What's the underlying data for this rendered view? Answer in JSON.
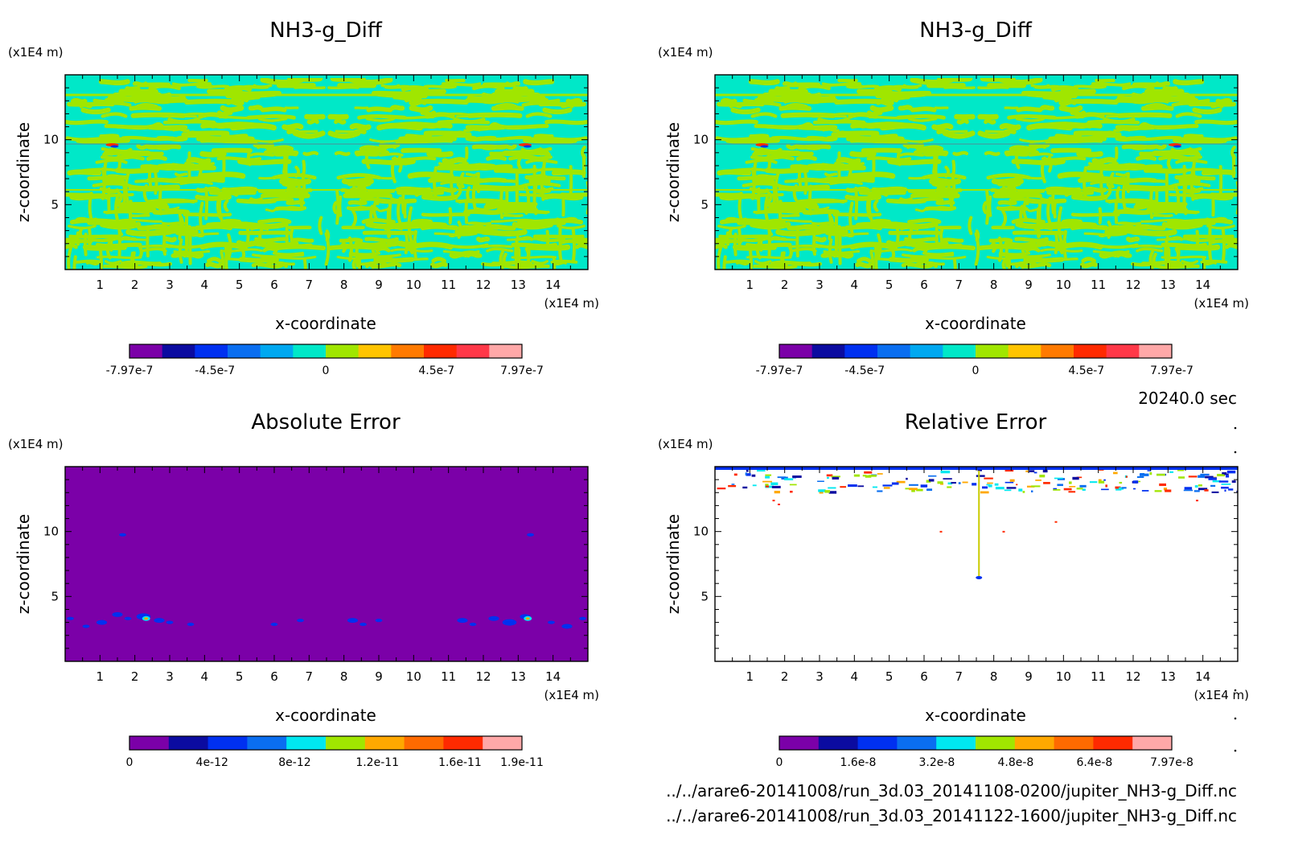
{
  "figure": {
    "time_label": "20240.0 sec",
    "files": [
      "../../arare6-20141008/run_3d.03_20141108-0200/jupiter_NH3-g_Diff.nc",
      "../../arare6-20141008/run_3d.03_20141122-1600/jupiter_NH3-g_Diff.nc"
    ]
  },
  "chart_data": [
    {
      "type": "heatmap",
      "title": "NH3-g_Diff",
      "xlabel": "x-coordinate",
      "ylabel": "z-coordinate",
      "x_unit": "(x1E4 m)",
      "y_unit": "(x1E4 m)",
      "xlim": [
        0,
        15
      ],
      "ylim": [
        0,
        15
      ],
      "x_ticks": [
        "1",
        "2",
        "3",
        "4",
        "5",
        "6",
        "7",
        "8",
        "9",
        "10",
        "11",
        "12",
        "13",
        "14"
      ],
      "y_ticks": [
        "5",
        "10"
      ],
      "pattern": "diff",
      "colorbar": {
        "colors": [
          "#7b00a8",
          "#0b0ba0",
          "#0030f0",
          "#0a6ef0",
          "#00a8f0",
          "#00e8c8",
          "#a0e600",
          "#ffc400",
          "#ff7a00",
          "#ff2a00",
          "#ff3848",
          "#ffa8a8"
        ],
        "tick_labels": [
          "-7.97e-7",
          "-4.5e-7",
          "0",
          "4.5e-7",
          "7.97e-7"
        ],
        "tick_values": [
          -7.97e-07,
          -4.5e-07,
          0,
          4.5e-07,
          7.97e-07
        ],
        "range": [
          -7.97e-07,
          7.97e-07
        ]
      }
    },
    {
      "type": "heatmap",
      "title": "NH3-g_Diff",
      "xlabel": "x-coordinate",
      "ylabel": "z-coordinate",
      "x_unit": "(x1E4 m)",
      "y_unit": "(x1E4 m)",
      "xlim": [
        0,
        15
      ],
      "ylim": [
        0,
        15
      ],
      "x_ticks": [
        "1",
        "2",
        "3",
        "4",
        "5",
        "6",
        "7",
        "8",
        "9",
        "10",
        "11",
        "12",
        "13",
        "14"
      ],
      "y_ticks": [
        "5",
        "10"
      ],
      "pattern": "diff",
      "colorbar": {
        "colors": [
          "#7b00a8",
          "#0b0ba0",
          "#0030f0",
          "#0a6ef0",
          "#00a8f0",
          "#00e8c8",
          "#a0e600",
          "#ffc400",
          "#ff7a00",
          "#ff2a00",
          "#ff3848",
          "#ffa8a8"
        ],
        "tick_labels": [
          "-7.97e-7",
          "-4.5e-7",
          "0",
          "4.5e-7",
          "7.97e-7"
        ],
        "tick_values": [
          -7.97e-07,
          -4.5e-07,
          0,
          4.5e-07,
          7.97e-07
        ],
        "range": [
          -7.97e-07,
          7.97e-07
        ]
      }
    },
    {
      "type": "heatmap",
      "title": "Absolute Error",
      "xlabel": "x-coordinate",
      "ylabel": "z-coordinate",
      "x_unit": "(x1E4 m)",
      "y_unit": "(x1E4 m)",
      "xlim": [
        0,
        15
      ],
      "ylim": [
        0,
        15
      ],
      "x_ticks": [
        "1",
        "2",
        "3",
        "4",
        "5",
        "6",
        "7",
        "8",
        "9",
        "10",
        "11",
        "12",
        "13",
        "14"
      ],
      "y_ticks": [
        "5",
        "10"
      ],
      "pattern": "abs",
      "colorbar": {
        "colors": [
          "#7b00a8",
          "#0b0ba0",
          "#0030f0",
          "#0a6ef0",
          "#00e8f0",
          "#a0e600",
          "#ffa800",
          "#ff6a00",
          "#ff2a00",
          "#ffa8a8"
        ],
        "tick_labels": [
          "0",
          "4e-12",
          "8e-12",
          "1.2e-11",
          "1.6e-11",
          "1.9e-11"
        ],
        "tick_values": [
          0,
          4e-12,
          8e-12,
          1.2e-11,
          1.6e-11,
          1.9e-11
        ],
        "range": [
          0,
          1.9e-11
        ]
      }
    },
    {
      "type": "heatmap",
      "title": "Relative Error",
      "xlabel": "x-coordinate",
      "ylabel": "z-coordinate",
      "x_unit": "(x1E4 m)",
      "y_unit": "(x1E4 m)",
      "xlim": [
        0,
        15
      ],
      "ylim": [
        0,
        15
      ],
      "x_ticks": [
        "1",
        "2",
        "3",
        "4",
        "5",
        "6",
        "7",
        "8",
        "9",
        "10",
        "11",
        "12",
        "13",
        "14"
      ],
      "y_ticks": [
        "5",
        "10"
      ],
      "pattern": "rel",
      "colorbar": {
        "colors": [
          "#7b00a8",
          "#0b0ba0",
          "#0030f0",
          "#0a6ef0",
          "#00e8f0",
          "#a0e600",
          "#ffa800",
          "#ff6a00",
          "#ff2a00",
          "#ffa8a8"
        ],
        "tick_labels": [
          "0",
          "1.6e-8",
          "3.2e-8",
          "4.8e-8",
          "6.4e-8",
          "7.97e-8"
        ],
        "tick_values": [
          0,
          1.6e-08,
          3.2e-08,
          4.8e-08,
          6.4e-08,
          7.97e-08
        ],
        "range": [
          0,
          7.97e-08
        ]
      }
    }
  ]
}
